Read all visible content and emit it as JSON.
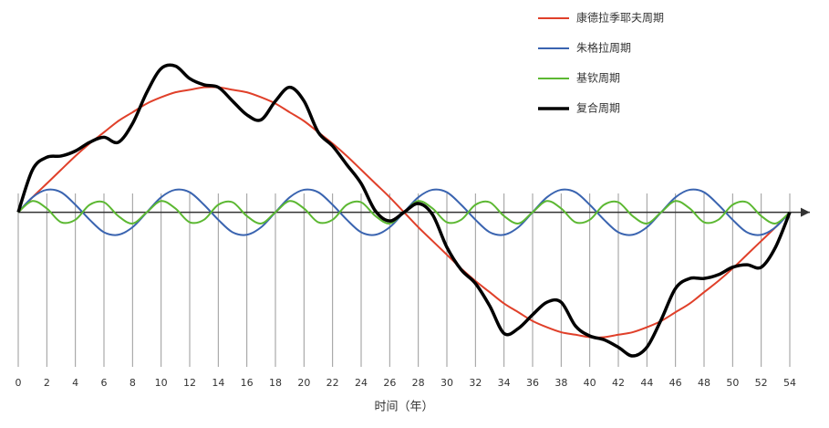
{
  "chart_data": {
    "type": "line",
    "x": [
      0,
      1,
      2,
      3,
      4,
      5,
      6,
      7,
      8,
      9,
      10,
      11,
      12,
      13,
      14,
      15,
      16,
      17,
      18,
      19,
      20,
      21,
      22,
      23,
      24,
      25,
      26,
      27,
      28,
      29,
      30,
      31,
      32,
      33,
      34,
      35,
      36,
      37,
      38,
      39,
      40,
      41,
      42,
      43,
      44,
      45,
      46,
      47,
      48,
      49,
      50,
      51,
      52,
      53,
      54
    ],
    "xlabel": "时间（年）",
    "xlim": [
      0,
      54
    ],
    "xticks": [
      0,
      2,
      4,
      6,
      8,
      10,
      12,
      14,
      16,
      18,
      20,
      22,
      24,
      26,
      28,
      30,
      32,
      34,
      36,
      38,
      40,
      42,
      44,
      46,
      48,
      50,
      52,
      54
    ],
    "ylim": [
      -1.23,
      1.37
    ],
    "grid": true,
    "legend": "top-right",
    "series": [
      {
        "name": "康德拉季耶夫周期",
        "color": "#e0402a",
        "values": [
          0,
          0.12,
          0.23,
          0.34,
          0.45,
          0.55,
          0.64,
          0.73,
          0.8,
          0.87,
          0.92,
          0.96,
          0.98,
          1.0,
          1.0,
          0.98,
          0.96,
          0.92,
          0.87,
          0.8,
          0.73,
          0.64,
          0.55,
          0.45,
          0.34,
          0.23,
          0.12,
          0,
          -0.12,
          -0.23,
          -0.34,
          -0.45,
          -0.55,
          -0.64,
          -0.73,
          -0.8,
          -0.87,
          -0.92,
          -0.96,
          -0.98,
          -1.0,
          -1.0,
          -0.98,
          -0.96,
          -0.92,
          -0.87,
          -0.8,
          -0.73,
          -0.64,
          -0.55,
          -0.45,
          -0.34,
          -0.23,
          -0.12,
          0
        ]
      },
      {
        "name": "朱格拉周期",
        "color": "#3a64b0",
        "values": [
          0,
          0.12,
          0.18,
          0.16,
          0.06,
          -0.06,
          -0.16,
          -0.18,
          -0.12,
          0,
          0.12,
          0.18,
          0.16,
          0.06,
          -0.06,
          -0.16,
          -0.18,
          -0.12,
          0,
          0.12,
          0.18,
          0.16,
          0.06,
          -0.06,
          -0.16,
          -0.18,
          -0.12,
          0,
          0.12,
          0.18,
          0.16,
          0.06,
          -0.06,
          -0.16,
          -0.18,
          -0.12,
          0,
          0.12,
          0.18,
          0.16,
          0.06,
          -0.06,
          -0.16,
          -0.18,
          -0.12,
          0,
          0.12,
          0.18,
          0.16,
          0.06,
          -0.06,
          -0.16,
          -0.18,
          -0.12,
          0
        ]
      },
      {
        "name": "基钦周期",
        "color": "#5cb832",
        "values": [
          0,
          0.09,
          0.03,
          -0.08,
          -0.06,
          0.06,
          0.08,
          -0.03,
          -0.09,
          0,
          0.09,
          0.03,
          -0.08,
          -0.06,
          0.06,
          0.08,
          -0.03,
          -0.09,
          0,
          0.09,
          0.03,
          -0.08,
          -0.06,
          0.06,
          0.08,
          -0.03,
          -0.09,
          0,
          0.09,
          0.03,
          -0.08,
          -0.06,
          0.06,
          0.08,
          -0.03,
          -0.09,
          0,
          0.09,
          0.03,
          -0.08,
          -0.06,
          0.06,
          0.08,
          -0.03,
          -0.09,
          0,
          0.09,
          0.03,
          -0.08,
          -0.06,
          0.06,
          0.08,
          -0.03,
          -0.09,
          0
        ]
      },
      {
        "name": "复合周期",
        "color": "#000000",
        "values": [
          0,
          0.34,
          0.44,
          0.45,
          0.49,
          0.56,
          0.6,
          0.56,
          0.71,
          0.96,
          1.15,
          1.17,
          1.07,
          1.02,
          1.0,
          0.89,
          0.78,
          0.74,
          0.89,
          1.0,
          0.89,
          0.64,
          0.53,
          0.38,
          0.23,
          0.01,
          -0.07,
          0,
          0.07,
          -0.02,
          -0.28,
          -0.46,
          -0.57,
          -0.75,
          -0.97,
          -0.93,
          -0.82,
          -0.72,
          -0.72,
          -0.91,
          -0.99,
          -1.02,
          -1.08,
          -1.15,
          -1.08,
          -0.86,
          -0.61,
          -0.53,
          -0.53,
          -0.5,
          -0.44,
          -0.42,
          -0.44,
          -0.28,
          0
        ]
      }
    ]
  }
}
